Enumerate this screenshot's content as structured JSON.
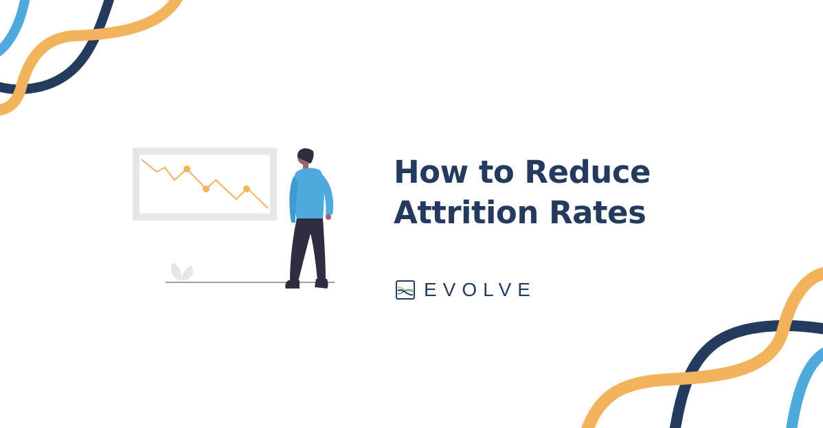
{
  "title": {
    "line1": "How to Reduce",
    "line2": "Attrition Rates"
  },
  "brand": {
    "name": "EVOLVE",
    "logo_icon": "evolve-wave-logo-icon"
  },
  "illustration": {
    "description_icons": [
      "chart-board-icon",
      "person-figure",
      "plant-icon"
    ]
  },
  "colors": {
    "navy": "#243b5e",
    "orange": "#f2b35c",
    "light_blue": "#4ea9dc",
    "board_gray": "#e6e6e6",
    "chart_orange": "#f2b35c"
  }
}
